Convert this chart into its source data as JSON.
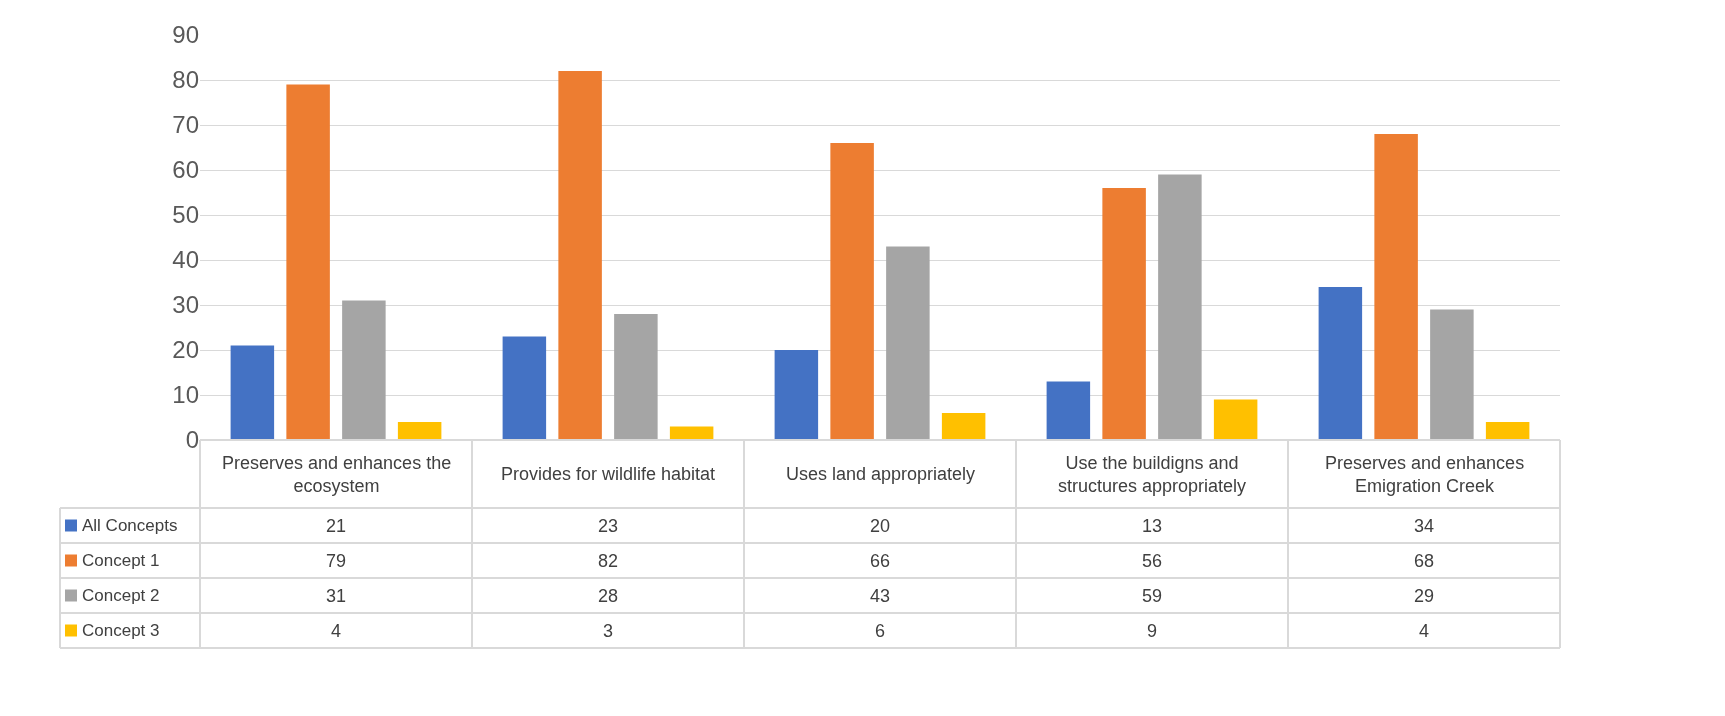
{
  "chart_data": {
    "type": "bar",
    "categories": [
      "Preserves and enhances the ecosystem",
      "Provides for wildlife habitat",
      "Uses land appropriately",
      "Use the buildigns and structures appropriately",
      "Preserves and enhances Emigration Creek"
    ],
    "series": [
      {
        "name": "All Concepts",
        "color": "#4472c4",
        "values": [
          21,
          23,
          20,
          13,
          34
        ]
      },
      {
        "name": "Concept 1",
        "color": "#ed7d31",
        "values": [
          79,
          82,
          66,
          56,
          68
        ]
      },
      {
        "name": "Concept 2",
        "color": "#a5a5a5",
        "values": [
          31,
          28,
          43,
          59,
          29
        ]
      },
      {
        "name": "Concept 3",
        "color": "#ffc000",
        "values": [
          4,
          3,
          6,
          9,
          4
        ]
      }
    ],
    "ylim": [
      0,
      90
    ],
    "yticks": [
      0,
      10,
      20,
      30,
      40,
      50,
      60,
      70,
      80,
      90
    ],
    "grid": "y",
    "data_labels": true,
    "legend": "bottom left"
  }
}
